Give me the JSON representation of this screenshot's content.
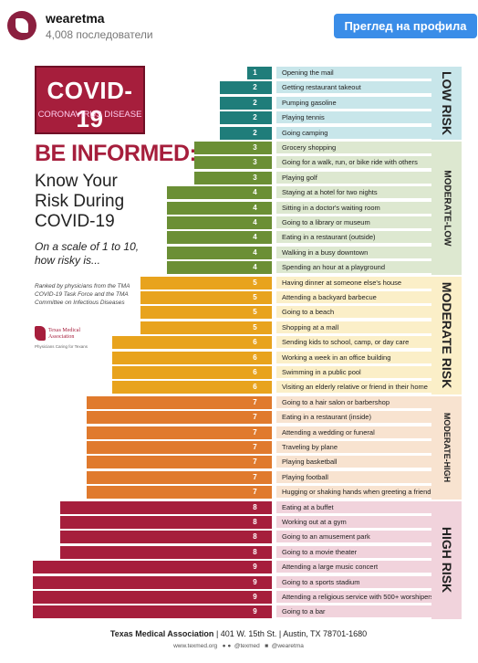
{
  "post": {
    "account": "wearetma",
    "followers": "4,008 последователи",
    "profile_button": "Преглед на профила"
  },
  "infographic": {
    "badge_title": "COVID-19",
    "badge_subtitle": "CORONAVIRUS DISEASE",
    "headline": "BE INFORMED:",
    "subhead": "Know Your Risk During COVID-19",
    "scale_question": "On a scale of 1 to 10, how risky is...",
    "ranked_note": "Ranked by physicians from the TMA COVID-19 Task Force and the TMA Committee on Infectious Diseases",
    "logo_name": "Texas Medical Association",
    "logo_tagline": "Physicians Caring for Texans",
    "bands": [
      {
        "label": "LOW RISK",
        "color": "#c8e6ea"
      },
      {
        "label": "MODERATE-LOW",
        "color": "#dde8d0"
      },
      {
        "label": "MODERATE RISK",
        "color": "#fbefc8"
      },
      {
        "label": "MODERATE-HIGH",
        "color": "#f8e3d0"
      },
      {
        "label": "HIGH RISK",
        "color": "#f1d3dc"
      }
    ],
    "score_colors": {
      "1": "#1f7d7a",
      "2": "#1f7d7a",
      "3": "#6b8f35",
      "4": "#6b8f35",
      "5": "#e8a31d",
      "6": "#e8a31d",
      "7": "#e07a2d",
      "8": "#a61e3c",
      "9": "#a61e3c"
    },
    "label_colors": {
      "1": "#c8e6ea",
      "2": "#c8e6ea",
      "3": "#dde8d0",
      "4": "#dde8d0",
      "5": "#fbefc8",
      "6": "#fbefc8",
      "7": "#f8e3d0",
      "8": "#f1d3dc",
      "9": "#f1d3dc"
    },
    "activities": [
      {
        "score": 1,
        "label": "Opening the mail"
      },
      {
        "score": 2,
        "label": "Getting restaurant takeout"
      },
      {
        "score": 2,
        "label": "Pumping gasoline"
      },
      {
        "score": 2,
        "label": "Playing tennis"
      },
      {
        "score": 2,
        "label": "Going camping"
      },
      {
        "score": 3,
        "label": "Grocery shopping"
      },
      {
        "score": 3,
        "label": "Going for a walk, run, or bike ride with others"
      },
      {
        "score": 3,
        "label": "Playing golf"
      },
      {
        "score": 4,
        "label": "Staying at a hotel for two nights"
      },
      {
        "score": 4,
        "label": "Sitting in a doctor's waiting room"
      },
      {
        "score": 4,
        "label": "Going to a library or museum"
      },
      {
        "score": 4,
        "label": "Eating in a restaurant (outside)"
      },
      {
        "score": 4,
        "label": "Walking in a busy downtown"
      },
      {
        "score": 4,
        "label": "Spending an hour at a playground"
      },
      {
        "score": 5,
        "label": "Having dinner at someone else's house"
      },
      {
        "score": 5,
        "label": "Attending a backyard barbecue"
      },
      {
        "score": 5,
        "label": "Going to a beach"
      },
      {
        "score": 5,
        "label": "Shopping at a mall"
      },
      {
        "score": 6,
        "label": "Sending kids to school, camp, or day care"
      },
      {
        "score": 6,
        "label": "Working a week in an office building"
      },
      {
        "score": 6,
        "label": "Swimming in a public pool"
      },
      {
        "score": 6,
        "label": "Visiting an elderly relative or friend in their home"
      },
      {
        "score": 7,
        "label": "Going to a hair salon or barbershop"
      },
      {
        "score": 7,
        "label": "Eating in a restaurant (inside)"
      },
      {
        "score": 7,
        "label": "Attending a wedding or funeral"
      },
      {
        "score": 7,
        "label": "Traveling by plane"
      },
      {
        "score": 7,
        "label": "Playing basketball"
      },
      {
        "score": 7,
        "label": "Playing football"
      },
      {
        "score": 7,
        "label": "Hugging or shaking hands when greeting a friend"
      },
      {
        "score": 8,
        "label": "Eating at a buffet"
      },
      {
        "score": 8,
        "label": "Working out at a gym"
      },
      {
        "score": 8,
        "label": "Going to an amusement park"
      },
      {
        "score": 8,
        "label": "Going to a movie theater"
      },
      {
        "score": 9,
        "label": "Attending a large music concert"
      },
      {
        "score": 9,
        "label": "Going to a sports stadium"
      },
      {
        "score": 9,
        "label": "Attending a religious service with 500+ worshipers"
      },
      {
        "score": 9,
        "label": "Going to a bar"
      }
    ],
    "footer": {
      "org": "Texas Medical Association",
      "address": "401 W. 15th St.",
      "city": "Austin, TX 78701-1680",
      "website": "www.texmed.org",
      "social_1": "@texmed",
      "social_2": "@wearetma"
    }
  }
}
